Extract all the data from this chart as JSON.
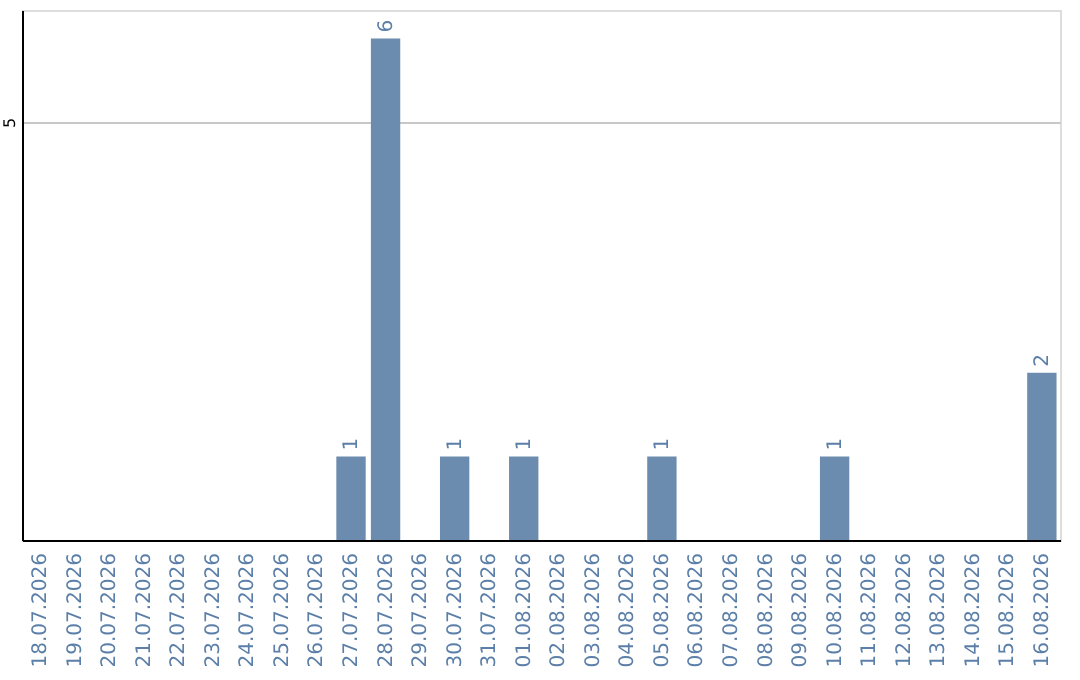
{
  "chart_data": {
    "type": "bar",
    "categories": [
      "18.07.2026",
      "19.07.2026",
      "20.07.2026",
      "21.07.2026",
      "22.07.2026",
      "23.07.2026",
      "24.07.2026",
      "25.07.2026",
      "26.07.2026",
      "27.07.2026",
      "28.07.2026",
      "29.07.2026",
      "30.07.2026",
      "31.07.2026",
      "01.08.2026",
      "02.08.2026",
      "03.08.2026",
      "04.08.2026",
      "05.08.2026",
      "06.08.2026",
      "07.08.2026",
      "08.08.2026",
      "09.08.2026",
      "10.08.2026",
      "11.08.2026",
      "12.08.2026",
      "13.08.2026",
      "14.08.2026",
      "15.08.2026",
      "16.08.2026"
    ],
    "values": [
      0,
      0,
      0,
      0,
      0,
      0,
      0,
      0,
      0,
      1,
      6,
      0,
      1,
      0,
      1,
      0,
      0,
      0,
      1,
      0,
      0,
      0,
      0,
      1,
      0,
      0,
      0,
      0,
      0,
      2
    ],
    "value_labels": [
      null,
      null,
      null,
      null,
      null,
      null,
      null,
      null,
      null,
      "1",
      "6",
      null,
      "1",
      null,
      "1",
      null,
      null,
      null,
      "1",
      null,
      null,
      null,
      null,
      "1",
      null,
      null,
      null,
      null,
      null,
      "2"
    ],
    "color": "#6b8cae",
    "ylim": [
      0,
      6.34
    ],
    "yticks": [
      5
    ],
    "grid": "y"
  }
}
